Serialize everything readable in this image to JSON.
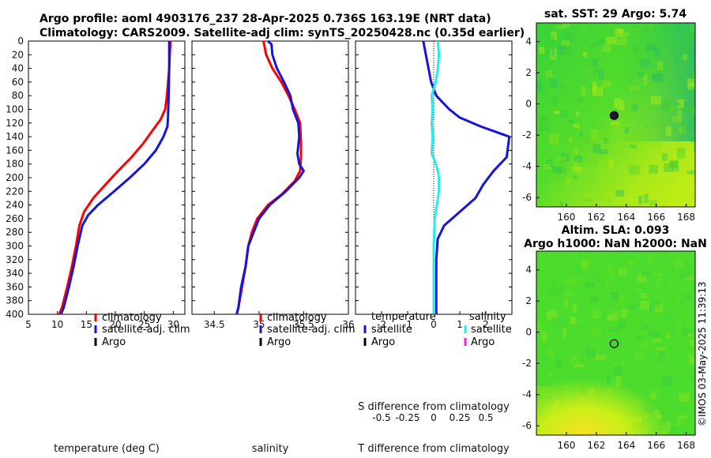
{
  "title": {
    "line1": "Argo profile: aoml 4903176_237 28-Apr-2025 0.736S 163.19E (NRT data)",
    "line2": "Climatology: CARS2009. Satellite-adj clim: synTS_20250428.nc (0.35d earlier)"
  },
  "colors": {
    "climatology": "#ff0000",
    "satellite": "#1414dc",
    "argo": "#000000",
    "sal_satellite": "#22eeee",
    "sal_argo": "#ff22dd"
  },
  "stamp": "©IMOS 03-May-2025 11:39:13",
  "chart_data": [
    {
      "id": "temperature",
      "type": "line",
      "xlabel": "temperature (deg C)",
      "ylabel": "",
      "xlim": [
        5,
        32
      ],
      "ylim": [
        0,
        400
      ],
      "y_inverted": true,
      "xticks": [
        5,
        10,
        15,
        20,
        25,
        30
      ],
      "yticks": [
        0,
        20,
        40,
        60,
        80,
        100,
        120,
        140,
        160,
        180,
        200,
        220,
        240,
        260,
        280,
        300,
        320,
        340,
        360,
        380,
        400
      ],
      "legend": [
        "climatology",
        "satellite-adj. clim",
        "Argo"
      ],
      "series": [
        {
          "name": "climatology",
          "color_key": "climatology",
          "points": [
            [
              29.5,
              0
            ],
            [
              29.4,
              20
            ],
            [
              29.3,
              40
            ],
            [
              29.1,
              60
            ],
            [
              28.9,
              80
            ],
            [
              28.6,
              100
            ],
            [
              27.8,
              115
            ],
            [
              26.5,
              130
            ],
            [
              24.8,
              150
            ],
            [
              22.8,
              170
            ],
            [
              20.5,
              190
            ],
            [
              18.3,
              210
            ],
            [
              16.2,
              230
            ],
            [
              14.6,
              250
            ],
            [
              13.8,
              270
            ],
            [
              13.2,
              300
            ],
            [
              12.5,
              330
            ],
            [
              11.7,
              360
            ],
            [
              10.8,
              390
            ],
            [
              10.3,
              400
            ]
          ]
        },
        {
          "name": "satellite-adj. clim",
          "color_key": "satellite",
          "points": [
            [
              29.3,
              0
            ],
            [
              29.3,
              40
            ],
            [
              29.2,
              80
            ],
            [
              29.1,
              110
            ],
            [
              29.0,
              125
            ],
            [
              28.3,
              140
            ],
            [
              27.0,
              160
            ],
            [
              25.0,
              180
            ],
            [
              22.5,
              200
            ],
            [
              19.8,
              220
            ],
            [
              17.0,
              240
            ],
            [
              15.3,
              255
            ],
            [
              14.3,
              270
            ],
            [
              13.5,
              300
            ],
            [
              12.8,
              330
            ],
            [
              12.0,
              360
            ],
            [
              11.1,
              390
            ],
            [
              10.6,
              400
            ]
          ]
        }
      ]
    },
    {
      "id": "salinity",
      "type": "line",
      "xlabel": "salinity",
      "xlim": [
        34.25,
        36.0
      ],
      "ylim": [
        0,
        400
      ],
      "y_inverted": true,
      "xticks": [
        34.5,
        35,
        35.5,
        36
      ],
      "legend": [
        "climatology",
        "satellite-adj. clim",
        "Argo"
      ],
      "series": [
        {
          "name": "climatology",
          "color_key": "climatology",
          "points": [
            [
              35.05,
              0
            ],
            [
              35.08,
              20
            ],
            [
              35.15,
              40
            ],
            [
              35.25,
              60
            ],
            [
              35.33,
              80
            ],
            [
              35.4,
              100
            ],
            [
              35.46,
              120
            ],
            [
              35.47,
              150
            ],
            [
              35.47,
              170
            ],
            [
              35.46,
              190
            ],
            [
              35.4,
              205
            ],
            [
              35.25,
              225
            ],
            [
              35.1,
              240
            ],
            [
              34.98,
              260
            ],
            [
              34.92,
              280
            ],
            [
              34.88,
              300
            ],
            [
              34.85,
              330
            ],
            [
              34.81,
              360
            ],
            [
              34.77,
              390
            ],
            [
              34.75,
              400
            ]
          ]
        },
        {
          "name": "satellite-adj. clim",
          "color_key": "satellite",
          "points": [
            [
              35.1,
              0
            ],
            [
              35.14,
              5
            ],
            [
              35.15,
              20
            ],
            [
              35.2,
              40
            ],
            [
              35.28,
              60
            ],
            [
              35.35,
              80
            ],
            [
              35.38,
              100
            ],
            [
              35.44,
              120
            ],
            [
              35.45,
              140
            ],
            [
              35.43,
              165
            ],
            [
              35.45,
              180
            ],
            [
              35.5,
              190
            ],
            [
              35.45,
              200
            ],
            [
              35.3,
              220
            ],
            [
              35.12,
              240
            ],
            [
              35.0,
              260
            ],
            [
              34.94,
              280
            ],
            [
              34.88,
              300
            ],
            [
              34.85,
              330
            ],
            [
              34.8,
              360
            ],
            [
              34.77,
              390
            ],
            [
              34.75,
              400
            ]
          ]
        }
      ]
    },
    {
      "id": "differences",
      "type": "line",
      "xlabel": "T difference from climatology",
      "xlim": [
        -3.0,
        3.0
      ],
      "ylim": [
        0,
        400
      ],
      "y_inverted": true,
      "xticks": [
        -2,
        -1,
        0,
        1,
        2
      ],
      "top_axis": {
        "label": "S difference from climatology",
        "ticks": [
          -0.5,
          -0.25,
          0,
          0.25,
          0.5
        ],
        "tick_labels": [
          "-0.5",
          "-0.25",
          "0",
          "0.25",
          "0.5"
        ],
        "xlim": [
          -0.75,
          0.75
        ]
      },
      "legend_temperature": {
        "title": "temperature",
        "items": [
          "satellite",
          "Argo"
        ]
      },
      "legend_salinity": {
        "title": "salinity",
        "items": [
          "satellite",
          "Argo"
        ]
      },
      "series": [
        {
          "name": "temperature satellite",
          "color_key": "satellite",
          "axis": "T",
          "points": [
            [
              -0.4,
              0
            ],
            [
              -0.3,
              20
            ],
            [
              -0.2,
              40
            ],
            [
              -0.1,
              60
            ],
            [
              0.1,
              80
            ],
            [
              0.6,
              100
            ],
            [
              1.0,
              112
            ],
            [
              1.8,
              125
            ],
            [
              2.9,
              140
            ],
            [
              2.8,
              170
            ],
            [
              2.3,
              190
            ],
            [
              1.9,
              210
            ],
            [
              1.6,
              230
            ],
            [
              1.0,
              250
            ],
            [
              0.4,
              270
            ],
            [
              0.15,
              290
            ],
            [
              0.1,
              320
            ],
            [
              0.1,
              360
            ],
            [
              0.1,
              400
            ]
          ]
        },
        {
          "name": "salinity satellite",
          "color_key": "sal_satellite",
          "axis": "S",
          "points": [
            [
              0.04,
              0
            ],
            [
              0.05,
              20
            ],
            [
              0.04,
              40
            ],
            [
              0.02,
              60
            ],
            [
              -0.02,
              80
            ],
            [
              -0.01,
              100
            ],
            [
              -0.02,
              120
            ],
            [
              -0.01,
              140
            ],
            [
              -0.02,
              165
            ],
            [
              0.01,
              175
            ],
            [
              0.04,
              190
            ],
            [
              0.05,
              200
            ],
            [
              0.05,
              220
            ],
            [
              0.03,
              240
            ],
            [
              0.01,
              260
            ],
            [
              0.0,
              300
            ],
            [
              0.0,
              360
            ],
            [
              0.0,
              400
            ]
          ]
        }
      ]
    },
    {
      "id": "sst_map",
      "type": "heatmap",
      "title": "sat. SST: 29 Argo: 5.74",
      "xlim": [
        158.0,
        168.6
      ],
      "ylim": [
        -6.6,
        5.2
      ],
      "xticks": [
        160,
        162,
        164,
        166,
        168
      ],
      "yticks": [
        -6,
        -4,
        -2,
        0,
        2,
        4
      ],
      "marker": [
        163.19,
        -0.736
      ]
    },
    {
      "id": "sla_map",
      "type": "heatmap",
      "title_line1": "Altim. SLA: 0.093",
      "title_line2": "Argo h1000: NaN h2000: NaN",
      "xlim": [
        158.0,
        168.6
      ],
      "ylim": [
        -6.6,
        5.2
      ],
      "xticks": [
        160,
        162,
        164,
        166,
        168
      ],
      "yticks": [
        -6,
        -4,
        -2,
        0,
        2,
        4
      ],
      "marker": [
        163.19,
        -0.736
      ]
    }
  ]
}
